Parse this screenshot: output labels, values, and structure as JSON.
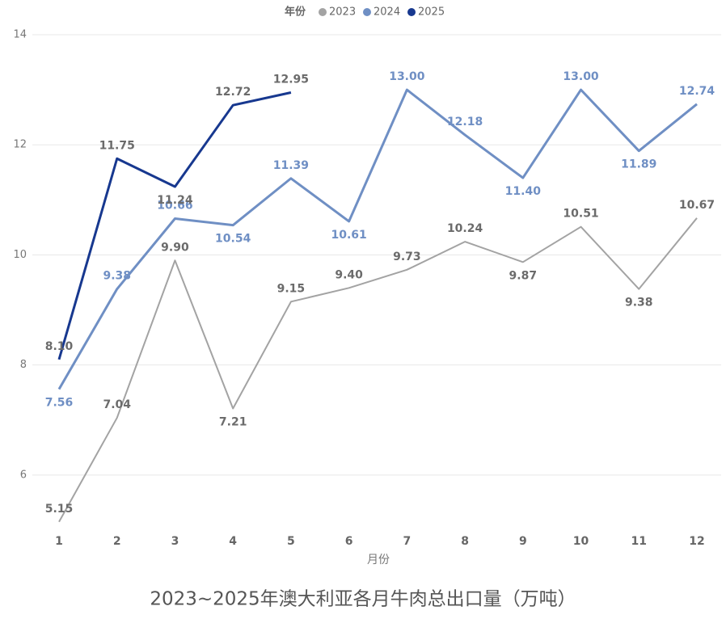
{
  "chart_data": {
    "type": "line",
    "title": "2023~2025年澳大利亚各月牛肉总出口量（万吨）",
    "x_label": "月份",
    "legend_title": "年份",
    "legend_position": "top",
    "grid": true,
    "categories": [
      "1",
      "2",
      "3",
      "4",
      "5",
      "6",
      "7",
      "8",
      "9",
      "10",
      "11",
      "12"
    ],
    "ylim": [
      5,
      14
    ],
    "yticks": [
      6,
      8,
      10,
      12,
      14
    ],
    "series": [
      {
        "name": "2023",
        "color": "#a3a3a3",
        "label_color": "#6b6b6b",
        "values": [
          5.15,
          7.04,
          9.9,
          7.21,
          9.15,
          9.4,
          9.73,
          10.24,
          9.87,
          10.51,
          9.38,
          10.67
        ],
        "value_labels": [
          "5.15",
          "7.04",
          "9.90",
          "7.21",
          "9.15",
          "9.40",
          "9.73",
          "10.24",
          "9.87",
          "10.51",
          "9.38",
          "10.67"
        ]
      },
      {
        "name": "2024",
        "color": "#6f8fc4",
        "label_color": "#6f8fc4",
        "values": [
          7.56,
          9.38,
          10.66,
          10.54,
          11.39,
          10.61,
          13.0,
          12.18,
          11.4,
          13.0,
          11.89,
          12.74
        ],
        "value_labels": [
          "7.56",
          "9.38",
          "10.66",
          "10.54",
          "11.39",
          "10.61",
          "13.00",
          "12.18",
          "11.40",
          "13.00",
          "11.89",
          "12.74"
        ]
      },
      {
        "name": "2025",
        "color": "#17388f",
        "label_color": "#6b6b6b",
        "values": [
          8.1,
          11.75,
          11.24,
          12.72,
          12.95,
          null,
          null,
          null,
          null,
          null,
          null,
          null
        ],
        "value_labels": [
          "8.10",
          "11.75",
          "11.24",
          "12.72",
          "12.95",
          null,
          null,
          null,
          null,
          null,
          null,
          null
        ]
      }
    ]
  }
}
